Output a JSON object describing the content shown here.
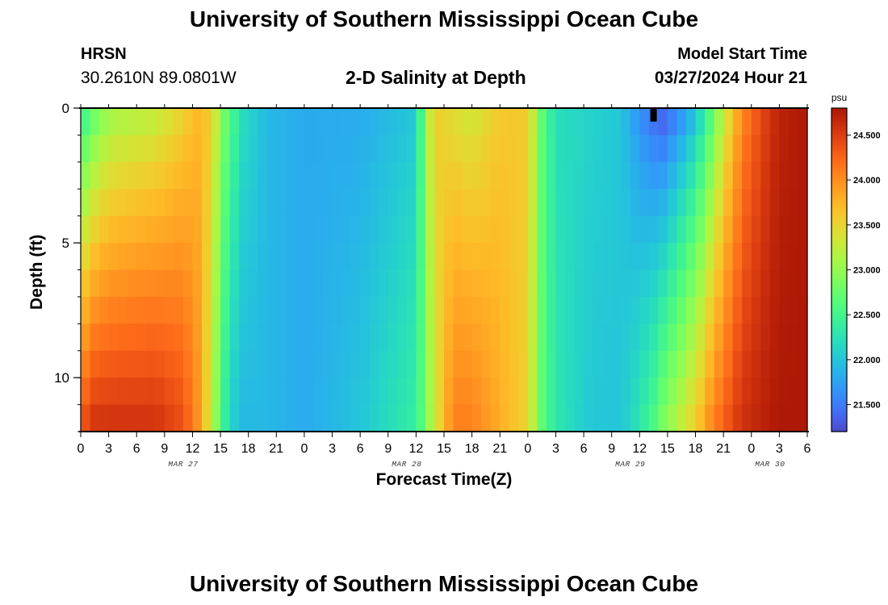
{
  "header": {
    "title": "University of Southern Mississippi Ocean Cube",
    "station": "HRSN",
    "coordinates": "30.2610N  89.0801W",
    "plot_title": "2-D Salinity at Depth",
    "model_start_label": "Model Start Time",
    "model_start_value": "03/27/2024 Hour 21"
  },
  "footer": {
    "title": "University of Southern Mississippi Ocean Cube"
  },
  "chart_data": {
    "type": "heatmap",
    "title": "2-D Salinity at Depth",
    "xlabel": "Forecast Time(Z)",
    "ylabel": "Depth (ft)",
    "x_range_hours": [
      0,
      78
    ],
    "x_tick_step_hours": 3,
    "x_tick_labels": [
      "0",
      "3",
      "6",
      "9",
      "12",
      "15",
      "18",
      "21",
      "0",
      "3",
      "6",
      "9",
      "12",
      "15",
      "18",
      "21",
      "0",
      "3",
      "6",
      "9",
      "12",
      "15",
      "18",
      "21",
      "0",
      "3",
      "6"
    ],
    "day_labels": [
      {
        "text": "MAR 27",
        "hour": 11
      },
      {
        "text": "MAR 28",
        "hour": 35
      },
      {
        "text": "MAR 29",
        "hour": 59
      },
      {
        "text": "MAR 30",
        "hour": 74
      }
    ],
    "y_range_ft": [
      0,
      12
    ],
    "y_ticks": [
      0,
      5,
      10
    ],
    "y_minor_step": 1,
    "colorbar": {
      "unit": "psu",
      "range": [
        21.2,
        24.8
      ],
      "ticks": [
        "21.500",
        "22.000",
        "22.500",
        "23.000",
        "23.500",
        "24.000",
        "24.500"
      ],
      "tick_values": [
        21.5,
        22.0,
        22.5,
        23.0,
        23.5,
        24.0,
        24.5
      ],
      "colormap": "turbo"
    },
    "salinity_profile": {
      "description": "Salinity (psu) at surface (0 ft) and bottom (12 ft) versus forecast hour; depth interpolated between",
      "hours": [
        0,
        1,
        3,
        5,
        8,
        11,
        12.5,
        14,
        15,
        16,
        17.5,
        20,
        24,
        30,
        36,
        37,
        38,
        40,
        42,
        45,
        48,
        49.5,
        51,
        55,
        58,
        60,
        61.5,
        62.5,
        64,
        66,
        67.5,
        69,
        71,
        73,
        75,
        78
      ],
      "surface": [
        22.3,
        22.6,
        23.0,
        23.1,
        23.2,
        23.5,
        23.7,
        23.6,
        23.0,
        22.6,
        22.2,
        21.9,
        21.8,
        21.8,
        22.0,
        23.0,
        23.6,
        23.4,
        23.3,
        23.6,
        23.6,
        22.7,
        22.2,
        22.1,
        22.0,
        21.6,
        21.4,
        21.3,
        21.5,
        21.9,
        22.5,
        23.2,
        24.0,
        24.4,
        24.7,
        24.8
      ],
      "bottom": [
        24.3,
        24.6,
        24.6,
        24.6,
        24.6,
        24.4,
        24.0,
        23.3,
        22.6,
        22.1,
        21.9,
        21.9,
        21.8,
        22.0,
        22.4,
        22.8,
        23.3,
        24.1,
        24.1,
        23.8,
        23.5,
        22.7,
        22.3,
        22.0,
        22.0,
        22.3,
        22.6,
        22.9,
        23.2,
        23.6,
        24.0,
        24.3,
        24.6,
        24.7,
        24.8,
        24.8
      ]
    },
    "annotations": [
      {
        "type": "marker",
        "hour": 61.5,
        "depth_ft": 0.5,
        "color": "#000000"
      }
    ]
  }
}
